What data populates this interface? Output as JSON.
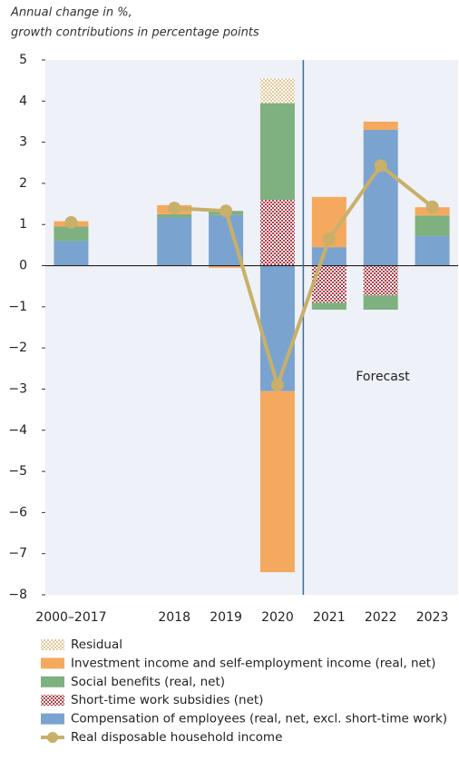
{
  "chart_data": {
    "type": "bar",
    "title": "Annual change in %,",
    "subtitle": "growth contributions in percentage points",
    "annotation": "Forecast",
    "categories": [
      "2000–2017",
      null,
      "2018",
      "2019",
      "2020",
      "2021",
      "2022",
      "2023"
    ],
    "series": [
      {
        "name": "Compensation of employees (real, net, excl. short-time work)",
        "color": "#7ba3cf",
        "kind": "bar",
        "values": [
          0.6,
          null,
          1.17,
          1.23,
          -3.05,
          0.45,
          3.3,
          0.72
        ]
      },
      {
        "name": "Short-time work subsidies (net)",
        "color": "#b0404a",
        "kind": "bar",
        "pattern": "check",
        "values": [
          null,
          null,
          null,
          null,
          1.6,
          -0.9,
          -0.72,
          null
        ]
      },
      {
        "name": "Social benefits (real, net)",
        "color": "#7fb07f",
        "kind": "bar",
        "values": [
          0.35,
          null,
          0.08,
          0.1,
          2.35,
          -0.17,
          -0.35,
          0.5
        ]
      },
      {
        "name": "Investment income and self-employment income (real, net)",
        "color": "#f5a95e",
        "kind": "bar",
        "values": [
          0.13,
          null,
          0.22,
          -0.05,
          -4.4,
          1.22,
          0.2,
          0.2
        ]
      },
      {
        "name": "Residual",
        "color": "#e2c89a",
        "kind": "bar",
        "pattern": "check",
        "values": [
          null,
          null,
          null,
          null,
          0.6,
          null,
          null,
          null
        ]
      },
      {
        "name": "Real disposable household income",
        "color": "#c8b06a",
        "kind": "line",
        "values": [
          1.05,
          null,
          1.4,
          1.33,
          -2.9,
          0.65,
          2.43,
          1.43
        ]
      }
    ],
    "ylim": [
      -8,
      5
    ],
    "yticks": [
      {
        "value": -8,
        "label": "−8"
      },
      {
        "value": -7,
        "label": "−7"
      },
      {
        "value": -6,
        "label": "−6"
      },
      {
        "value": -5,
        "label": "−5"
      },
      {
        "value": -4,
        "label": "−4"
      },
      {
        "value": -3,
        "label": "−3"
      },
      {
        "value": -2,
        "label": "−2"
      },
      {
        "value": -1,
        "label": "−1"
      },
      0,
      1,
      2,
      3,
      4,
      5
    ]
  }
}
